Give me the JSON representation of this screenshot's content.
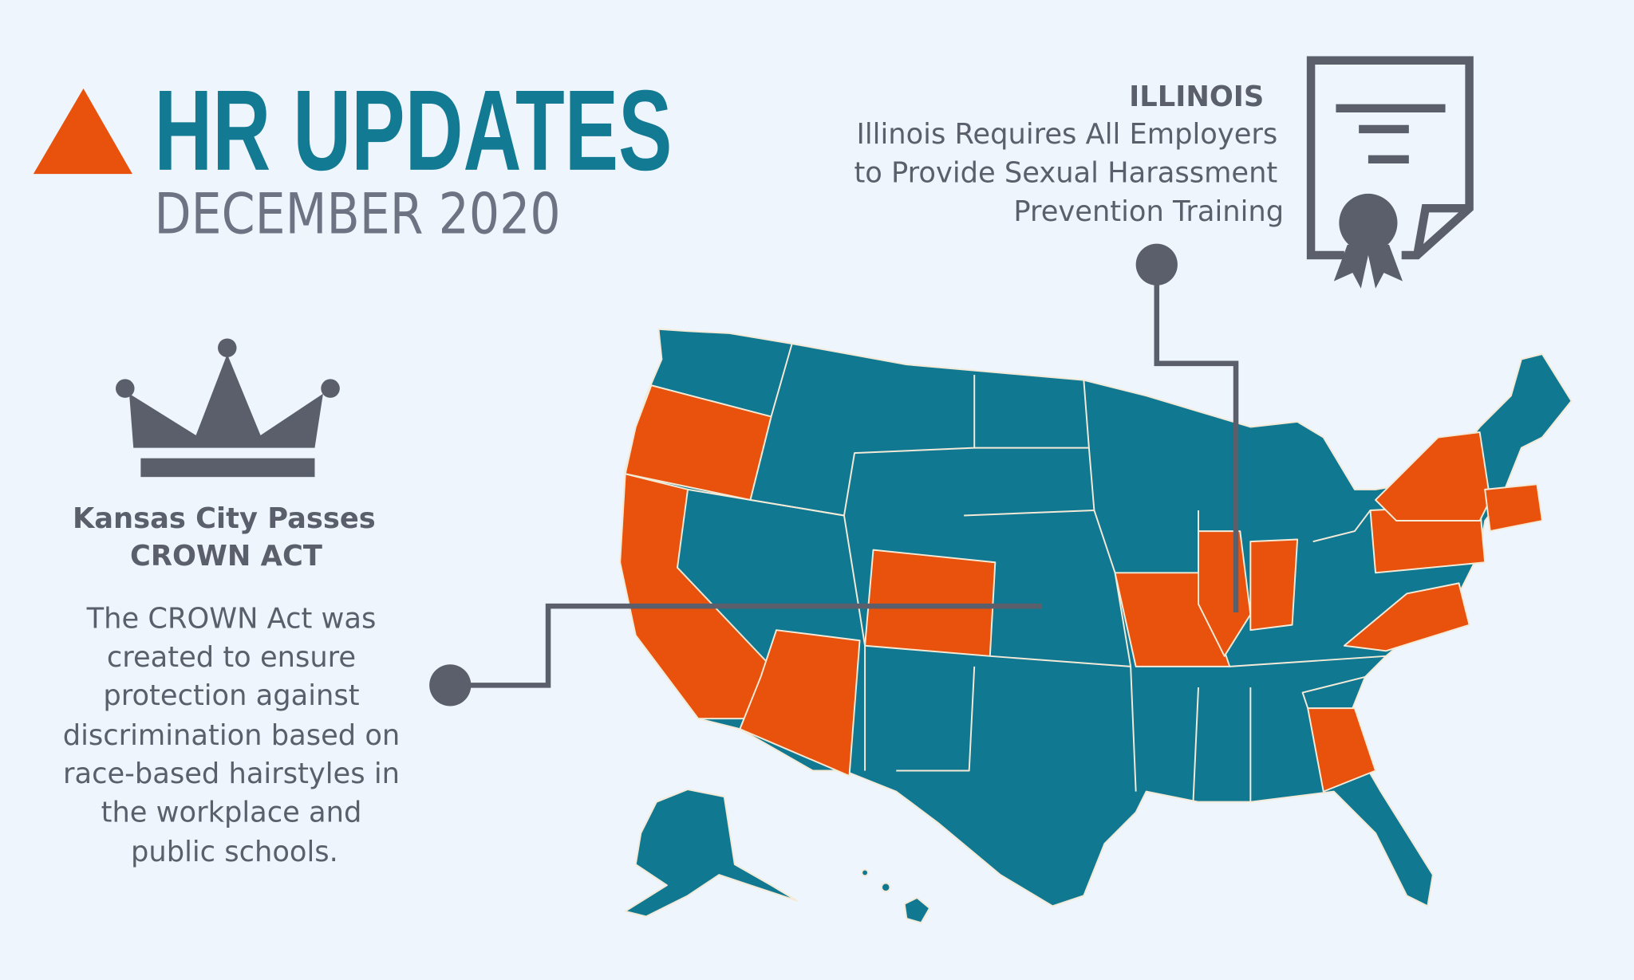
{
  "header": {
    "title": "HR UPDATES",
    "subtitle": "DECEMBER 2020"
  },
  "illinois": {
    "heading": "ILLINOIS",
    "lines": [
      "Illinois Requires All Employers",
      "to Provide Sexual Harassment",
      "Prevention Training"
    ]
  },
  "kansas_city": {
    "heading_lines": [
      "Kansas City Passes",
      "CROWN ACT"
    ],
    "body_lines": [
      "The CROWN Act was",
      "created to ensure",
      "protection against",
      "discrimination based on",
      "race-based hairstyles in",
      "the workplace and",
      "public schools."
    ]
  }
}
